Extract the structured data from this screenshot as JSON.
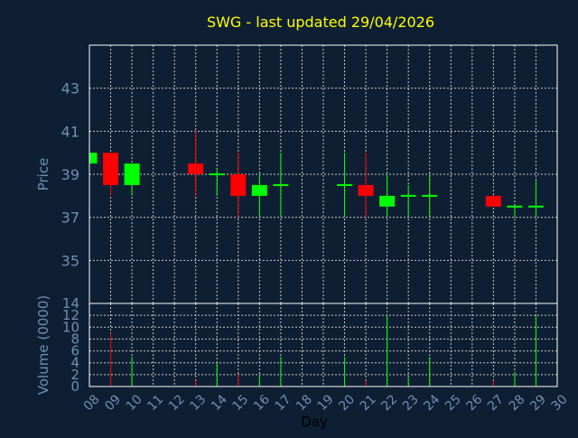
{
  "title": "SWG - last updated 29/04/2026",
  "colors": {
    "background": "#0f1f33",
    "title": "#ffff00",
    "axis_text": "#6f8fb5",
    "xlabel_text": "#000000",
    "frame": "#ffffff",
    "grid": "#c8c8c8",
    "up": "#00ff00",
    "down": "#ff0000"
  },
  "chart_data": [
    {
      "type": "candlestick",
      "ylabel": "Price",
      "ylim": [
        33,
        45
      ],
      "yticks": [
        35,
        37,
        39,
        41,
        43
      ],
      "x_domain": [
        8,
        30
      ],
      "candles": [
        {
          "day": 8,
          "open": 39.5,
          "high": 40.0,
          "low": 39.5,
          "close": 40.0
        },
        {
          "day": 9,
          "open": 40.0,
          "high": 40.0,
          "low": 38.0,
          "close": 38.5
        },
        {
          "day": 10,
          "open": 38.5,
          "high": 39.5,
          "low": 38.0,
          "close": 39.5
        },
        {
          "day": 13,
          "open": 39.5,
          "high": 41.0,
          "low": 38.0,
          "close": 39.0
        },
        {
          "day": 14,
          "open": 39.0,
          "high": 39.3,
          "low": 38.0,
          "close": 39.0
        },
        {
          "day": 15,
          "open": 39.0,
          "high": 40.0,
          "low": 37.0,
          "close": 38.0
        },
        {
          "day": 16,
          "open": 38.0,
          "high": 39.0,
          "low": 37.0,
          "close": 38.5
        },
        {
          "day": 17,
          "open": 38.5,
          "high": 40.0,
          "low": 37.0,
          "close": 38.5
        },
        {
          "day": 20,
          "open": 38.5,
          "high": 40.0,
          "low": 37.0,
          "close": 38.5
        },
        {
          "day": 21,
          "open": 38.5,
          "high": 40.0,
          "low": 37.0,
          "close": 38.0
        },
        {
          "day": 22,
          "open": 37.5,
          "high": 39.0,
          "low": 37.0,
          "close": 38.0
        },
        {
          "day": 23,
          "open": 38.0,
          "high": 38.5,
          "low": 37.0,
          "close": 38.0
        },
        {
          "day": 24,
          "open": 38.0,
          "high": 39.0,
          "low": 37.0,
          "close": 38.0
        },
        {
          "day": 27,
          "open": 38.0,
          "high": 38.0,
          "low": 37.5,
          "close": 37.5
        },
        {
          "day": 28,
          "open": 37.5,
          "high": 37.5,
          "low": 37.0,
          "close": 37.5
        },
        {
          "day": 29,
          "open": 37.5,
          "high": 38.7,
          "low": 37.0,
          "close": 37.5
        }
      ]
    },
    {
      "type": "bar",
      "ylabel": "Volume (0000)",
      "xlabel": "Day",
      "ylim": [
        0,
        14
      ],
      "yticks": [
        0,
        2,
        4,
        6,
        8,
        10,
        12,
        14
      ],
      "x_domain": [
        8,
        30
      ],
      "xticks": [
        "08",
        "09",
        "10",
        "11",
        "12",
        "13",
        "14",
        "15",
        "16",
        "17",
        "18",
        "19",
        "20",
        "21",
        "22",
        "23",
        "24",
        "25",
        "26",
        "27",
        "28",
        "29",
        "30"
      ],
      "bars": [
        {
          "day": 9,
          "value": 9,
          "dir": "down"
        },
        {
          "day": 10,
          "value": 5,
          "dir": "up"
        },
        {
          "day": 13,
          "value": 1,
          "dir": "down"
        },
        {
          "day": 14,
          "value": 4,
          "dir": "up"
        },
        {
          "day": 15,
          "value": 2,
          "dir": "down"
        },
        {
          "day": 16,
          "value": 2,
          "dir": "up"
        },
        {
          "day": 17,
          "value": 5,
          "dir": "up"
        },
        {
          "day": 20,
          "value": 5,
          "dir": "up"
        },
        {
          "day": 21,
          "value": 1,
          "dir": "down"
        },
        {
          "day": 22,
          "value": 12,
          "dir": "up"
        },
        {
          "day": 23,
          "value": 1.5,
          "dir": "up"
        },
        {
          "day": 24,
          "value": 5,
          "dir": "up"
        },
        {
          "day": 27,
          "value": 1,
          "dir": "down"
        },
        {
          "day": 28,
          "value": 2.5,
          "dir": "up"
        },
        {
          "day": 29,
          "value": 12,
          "dir": "up"
        }
      ]
    }
  ]
}
